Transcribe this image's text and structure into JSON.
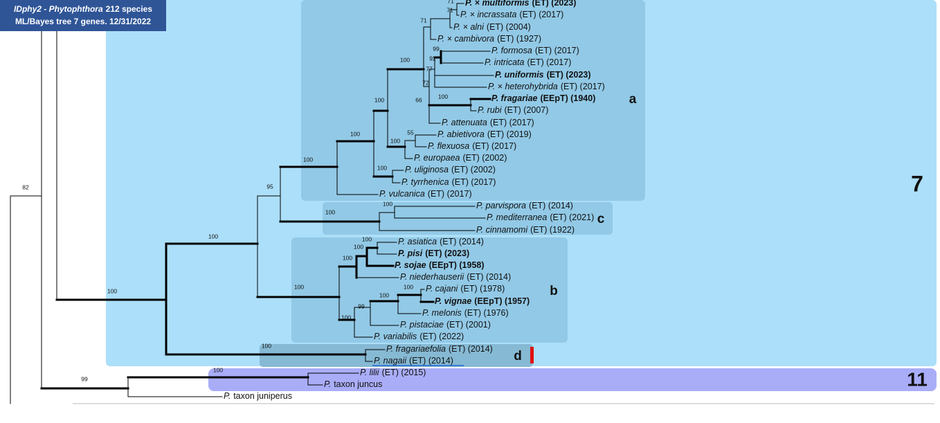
{
  "header": {
    "line1_italic": "IDphy2 - Phytophthora",
    "line1_rest": "212 species",
    "line2": "ML/Bayes tree 7 genes. 12/31/2022"
  },
  "clades": [
    "7",
    "11",
    "a",
    "b",
    "c",
    "d"
  ],
  "taxa": [
    {
      "name": "P. × multiformis",
      "suffix": "(ET) (2023)",
      "bold": true
    },
    {
      "name": "P. × incrassata",
      "suffix": "(ET) (2017)",
      "bold": false
    },
    {
      "name": "P. × alni",
      "suffix": "(ET) (2004)",
      "bold": false
    },
    {
      "name": "P. × cambivora",
      "suffix": "(ET) (1927)",
      "bold": false
    },
    {
      "name": "P. formosa",
      "suffix": "(ET) (2017)",
      "bold": false
    },
    {
      "name": "P. intricata",
      "suffix": "(ET) (2017)",
      "bold": false
    },
    {
      "name": "P. uniformis",
      "suffix": "(ET) (2023)",
      "bold": true
    },
    {
      "name": "P. × heterohybrida",
      "suffix": "(ET) (2017)",
      "bold": false
    },
    {
      "name": "P. fragariae",
      "suffix": "(EEpT) (1940)",
      "bold": true
    },
    {
      "name": "P. rubi",
      "suffix": "(ET) (2007)",
      "bold": false
    },
    {
      "name": "P. attenuata",
      "suffix": "(ET) (2017)",
      "bold": false
    },
    {
      "name": "P. abietivora",
      "suffix": "(ET) (2019)",
      "bold": false
    },
    {
      "name": "P. flexuosa",
      "suffix": "(ET) (2017)",
      "bold": false
    },
    {
      "name": "P. europaea",
      "suffix": "(ET) (2002)",
      "bold": false
    },
    {
      "name": "P. uliginosa",
      "suffix": "(ET) (2002)",
      "bold": false
    },
    {
      "name": "P. tyrrhenica",
      "suffix": "(ET) (2017)",
      "bold": false
    },
    {
      "name": "P. vulcanica",
      "suffix": "(ET) (2017)",
      "bold": false
    },
    {
      "name": "P. parvispora",
      "suffix": "(ET) (2014)",
      "bold": false
    },
    {
      "name": "P. mediterranea",
      "suffix": "(ET) (2021)",
      "bold": false
    },
    {
      "name": "P. cinnamomi",
      "suffix": "(ET) (1922)",
      "bold": false
    },
    {
      "name": "P. asiatica",
      "suffix": "(ET) (2014)",
      "bold": false
    },
    {
      "name": "P. pisi",
      "suffix": "(ET) (2023)",
      "bold": true
    },
    {
      "name": "P. sojae",
      "suffix": "(EEpT) (1958)",
      "bold": true
    },
    {
      "name": "P. niederhauserii",
      "suffix": "(ET) (2014)",
      "bold": false
    },
    {
      "name": "P. cajani",
      "suffix": "(ET) (1978)",
      "bold": false
    },
    {
      "name": "P. vignae",
      "suffix": "(EEpT) (1957)",
      "bold": true
    },
    {
      "name": "P. melonis",
      "suffix": "(ET) (1976)",
      "bold": false
    },
    {
      "name": "P. pistaciae",
      "suffix": "(ET) (2001)",
      "bold": false
    },
    {
      "name": "P. variabilis",
      "suffix": "(ET) (2022)",
      "bold": false
    },
    {
      "name": "P. fragariaefolia",
      "suffix": "(ET) (2014)",
      "bold": false
    },
    {
      "name": "P. nagaii",
      "suffix": "(ET) (2014)",
      "bold": false
    },
    {
      "name": "P. lilii",
      "suffix": "(ET) (2015)",
      "bold": false
    },
    {
      "name": "P.",
      "suffix": "taxon juncus",
      "bold": false
    },
    {
      "name": "P.",
      "suffix": "taxon juniperus",
      "bold": false
    }
  ],
  "support": [
    82,
    99,
    100,
    100,
    100,
    100,
    95,
    100,
    100,
    100,
    100,
    100,
    100,
    100,
    100,
    100,
    55,
    71,
    66,
    72,
    100,
    77,
    92,
    99,
    71,
    71,
    100,
    100,
    100,
    100,
    99,
    100,
    100
  ]
}
